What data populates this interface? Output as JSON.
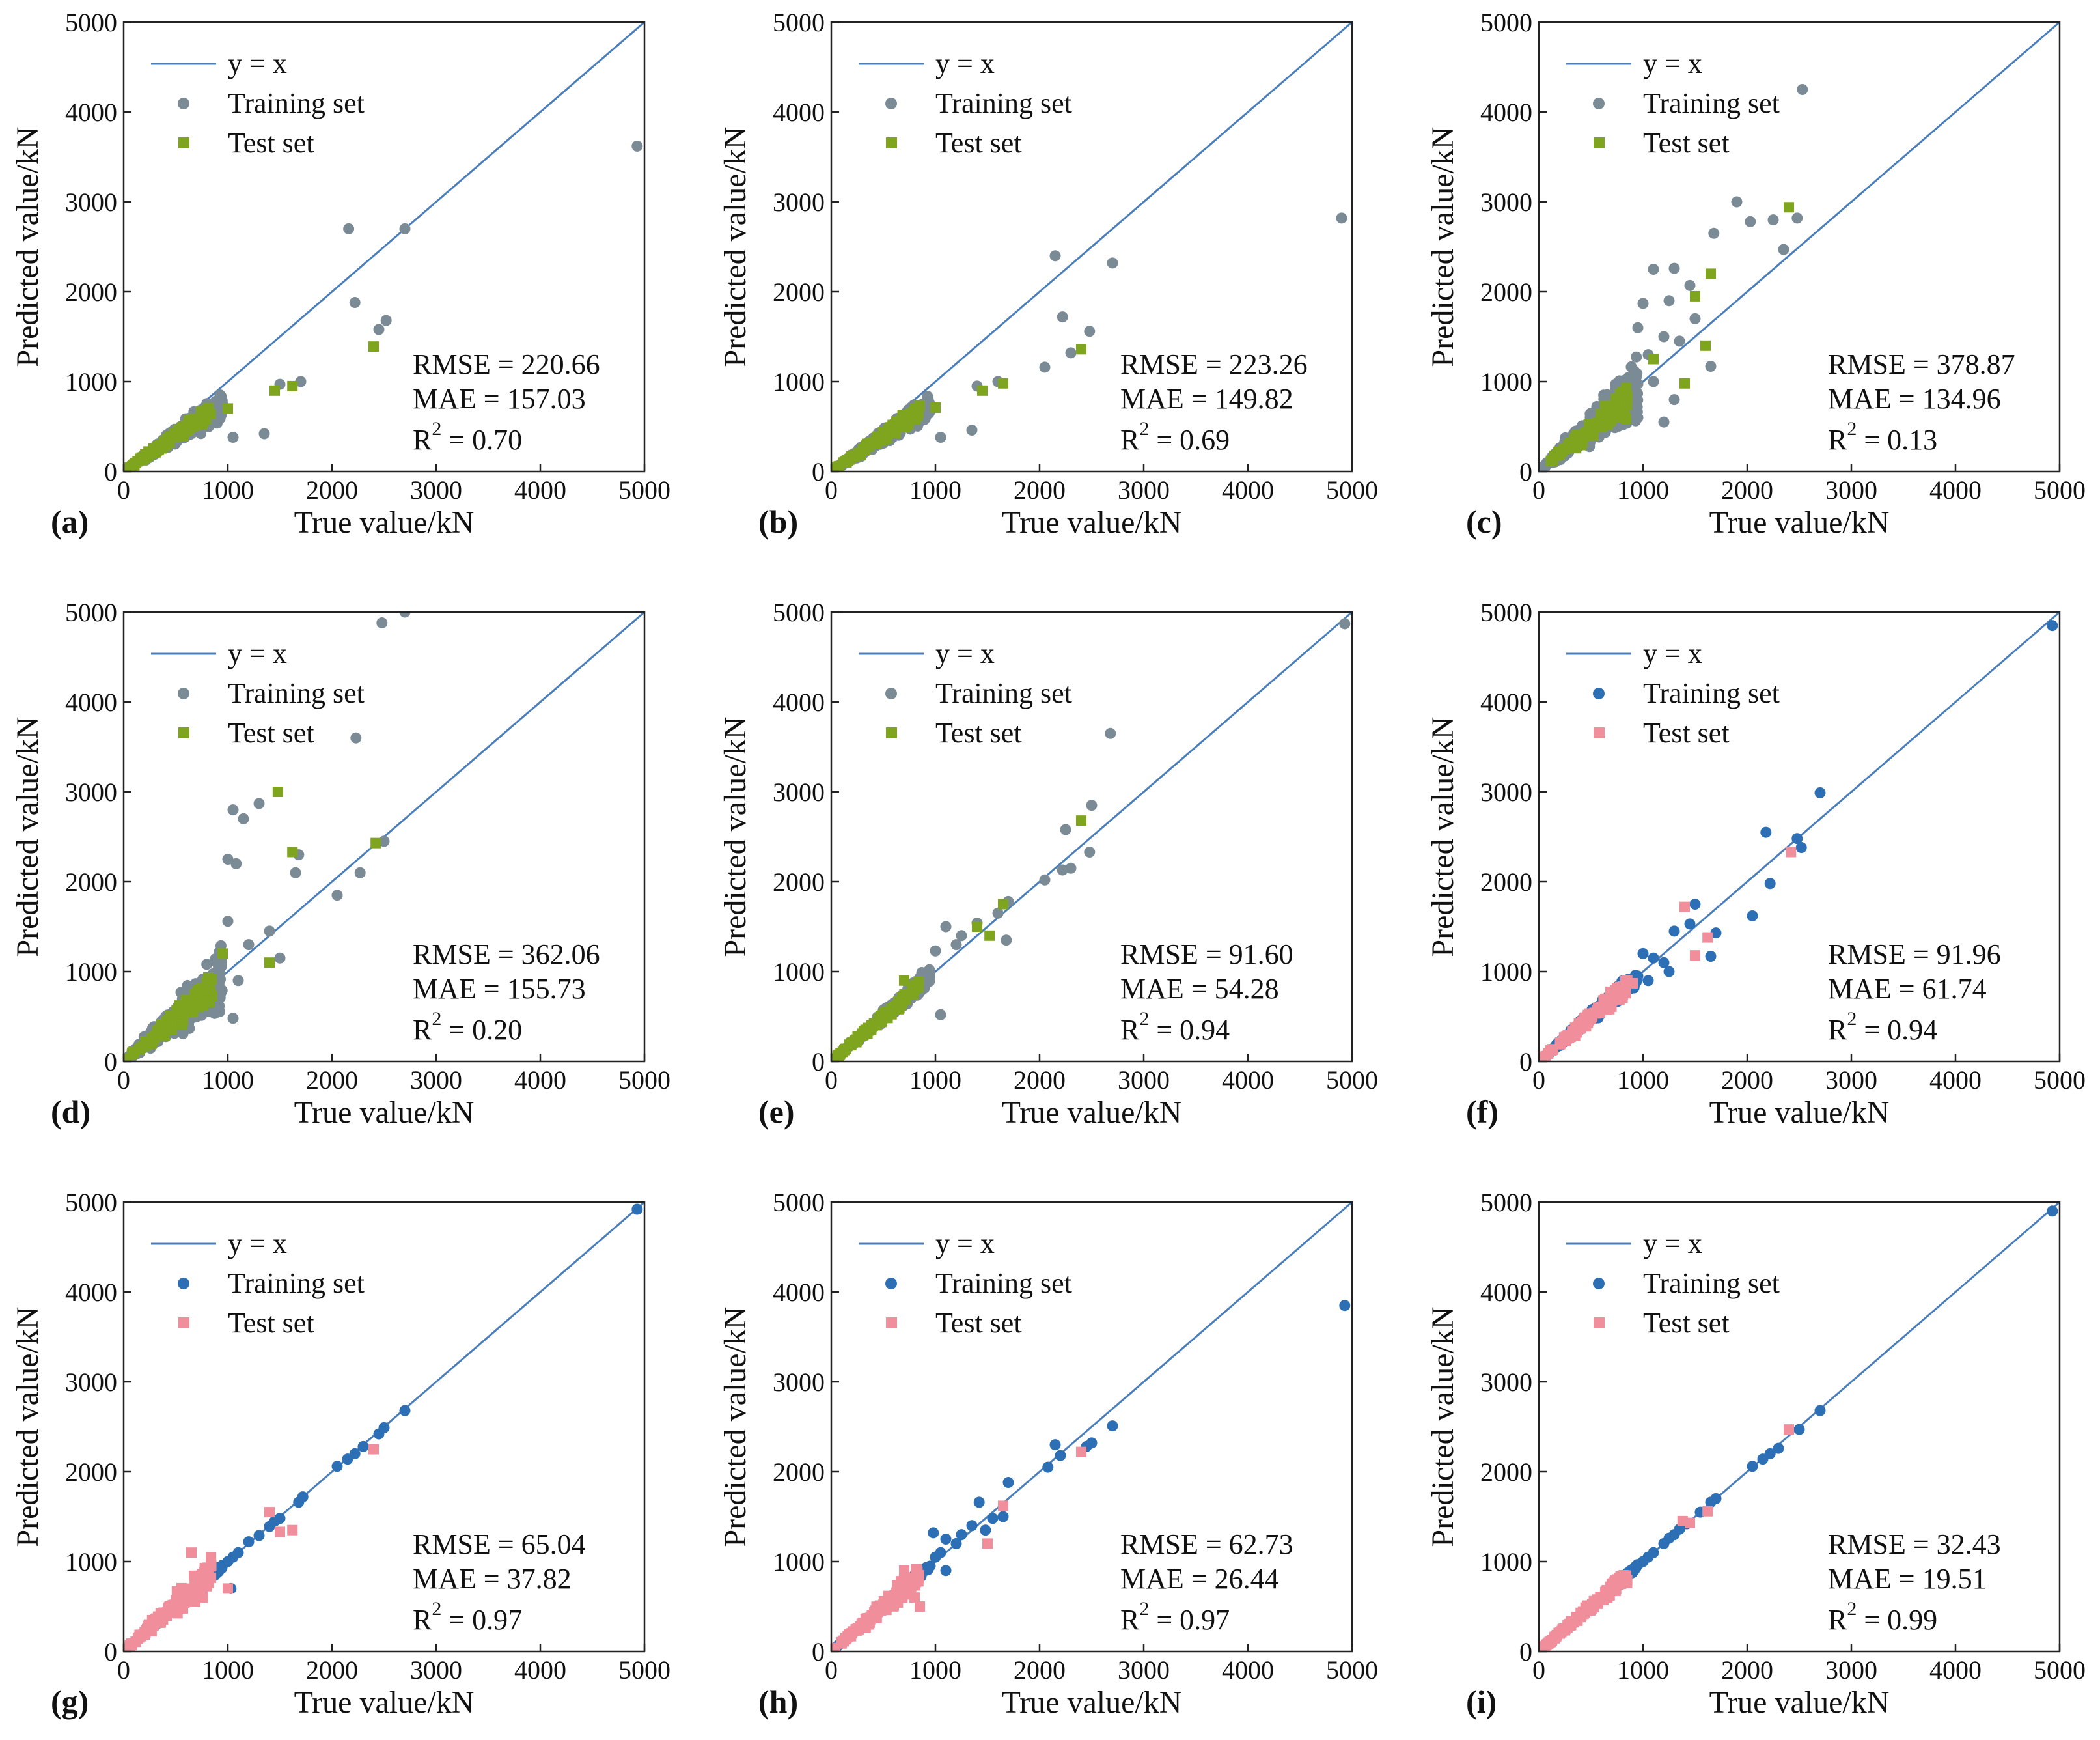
{
  "figure": {
    "colors": {
      "line": "#4A7EBB",
      "train_gray": "#7B8B96",
      "test_green": "#7FA51F",
      "train_blue": "#2D6FB4",
      "test_pink": "#F08E9C",
      "axis": "#222222"
    },
    "legend": {
      "line": "y = x",
      "train": "Training set",
      "test": "Test set"
    },
    "xlabel": "True value/kN",
    "ylabel": "Predicted value/kN",
    "ticks": [
      "0",
      "1000",
      "2000",
      "3000",
      "4000",
      "5000"
    ]
  },
  "chart_data": [
    {
      "type": "scatter",
      "id": "a",
      "label": "(a)",
      "scheme": "gray-green",
      "xlim": [
        0,
        5000
      ],
      "ylim": [
        0,
        5000
      ],
      "metrics": {
        "rmse": "RMSE = 220.66",
        "mae": "MAE = 157.03",
        "r2_value": "0.70"
      },
      "train_outliers": [
        [
          4930,
          3620
        ],
        [
          2160,
          2700
        ],
        [
          2700,
          2700
        ],
        [
          2220,
          1880
        ],
        [
          2450,
          1580
        ],
        [
          2520,
          1680
        ],
        [
          1700,
          1000
        ],
        [
          1500,
          970
        ],
        [
          1350,
          420
        ],
        [
          1050,
          380
        ]
      ],
      "test_outliers": [
        [
          2400,
          1390
        ],
        [
          1620,
          950
        ],
        [
          1450,
          900
        ],
        [
          1000,
          700
        ]
      ],
      "train_cluster": {
        "xmax": 950,
        "slope": 0.78,
        "spread": 0.32,
        "n": 340,
        "seed": 11
      },
      "test_cluster": {
        "xmax": 850,
        "slope": 0.8,
        "spread": 0.22,
        "n": 110,
        "seed": 12
      }
    },
    {
      "type": "scatter",
      "id": "b",
      "label": "(b)",
      "scheme": "gray-green",
      "xlim": [
        0,
        5000
      ],
      "ylim": [
        0,
        5000
      ],
      "metrics": {
        "rmse": "RMSE = 223.26",
        "mae": "MAE = 149.82",
        "r2_value": "0.69"
      },
      "train_outliers": [
        [
          4900,
          2820
        ],
        [
          2150,
          2400
        ],
        [
          2700,
          2320
        ],
        [
          2220,
          1720
        ],
        [
          2480,
          1560
        ],
        [
          2050,
          1160
        ],
        [
          2300,
          1320
        ],
        [
          1600,
          1000
        ],
        [
          1400,
          950
        ],
        [
          1350,
          460
        ],
        [
          1050,
          380
        ]
      ],
      "test_outliers": [
        [
          2400,
          1360
        ],
        [
          1650,
          980
        ],
        [
          1450,
          900
        ],
        [
          1000,
          710
        ]
      ],
      "train_cluster": {
        "xmax": 950,
        "slope": 0.78,
        "spread": 0.32,
        "n": 340,
        "seed": 21
      },
      "test_cluster": {
        "xmax": 850,
        "slope": 0.8,
        "spread": 0.22,
        "n": 110,
        "seed": 22
      }
    },
    {
      "type": "scatter",
      "id": "c",
      "label": "(c)",
      "scheme": "gray-green",
      "xlim": [
        0,
        5000
      ],
      "ylim": [
        0,
        5000
      ],
      "metrics": {
        "rmse": "RMSE = 378.87",
        "mae": "MAE = 134.96",
        "r2_value": "0.13"
      },
      "train_outliers": [
        [
          2530,
          4250
        ],
        [
          1900,
          3000
        ],
        [
          2030,
          2780
        ],
        [
          2250,
          2800
        ],
        [
          2480,
          2820
        ],
        [
          2350,
          2470
        ],
        [
          1680,
          2650
        ],
        [
          1100,
          2250
        ],
        [
          1300,
          2260
        ],
        [
          1450,
          2070
        ],
        [
          1250,
          1900
        ],
        [
          1000,
          1870
        ],
        [
          1500,
          1700
        ],
        [
          1650,
          1170
        ],
        [
          950,
          1600
        ],
        [
          1200,
          1500
        ],
        [
          1050,
          1300
        ],
        [
          1350,
          1450
        ],
        [
          1100,
          1000
        ],
        [
          1300,
          800
        ],
        [
          950,
          600
        ],
        [
          1200,
          550
        ]
      ],
      "test_outliers": [
        [
          2400,
          2940
        ],
        [
          1650,
          2200
        ],
        [
          1600,
          1400
        ],
        [
          1400,
          980
        ],
        [
          1500,
          1950
        ],
        [
          1100,
          1250
        ]
      ],
      "train_cluster": {
        "xmax": 950,
        "slope": 1.0,
        "spread": 0.5,
        "n": 360,
        "seed": 31
      },
      "test_cluster": {
        "xmax": 850,
        "slope": 0.95,
        "spread": 0.3,
        "n": 110,
        "seed": 32
      }
    },
    {
      "type": "scatter",
      "id": "d",
      "label": "(d)",
      "scheme": "gray-green",
      "xlim": [
        0,
        5000
      ],
      "ylim": [
        0,
        5000
      ],
      "metrics": {
        "rmse": "RMSE = 362.06",
        "mae": "MAE = 155.73",
        "r2_value": "0.20"
      },
      "train_outliers": [
        [
          2700,
          5000
        ],
        [
          2480,
          4880
        ],
        [
          2230,
          3600
        ],
        [
          1300,
          2870
        ],
        [
          1050,
          2800
        ],
        [
          1150,
          2700
        ],
        [
          1680,
          2300
        ],
        [
          1000,
          2250
        ],
        [
          1080,
          2200
        ],
        [
          1650,
          2100
        ],
        [
          2050,
          1850
        ],
        [
          2270,
          2100
        ],
        [
          2500,
          2450
        ],
        [
          1000,
          1560
        ],
        [
          1400,
          1450
        ],
        [
          1200,
          1300
        ],
        [
          1500,
          1150
        ],
        [
          1050,
          480
        ],
        [
          1100,
          900
        ]
      ],
      "test_outliers": [
        [
          1480,
          3000
        ],
        [
          1620,
          2330
        ],
        [
          2420,
          2430
        ],
        [
          950,
          1200
        ],
        [
          1400,
          1100
        ]
      ],
      "train_cluster": {
        "xmax": 950,
        "slope": 0.95,
        "spread": 0.55,
        "n": 360,
        "seed": 41
      },
      "test_cluster": {
        "xmax": 850,
        "slope": 0.95,
        "spread": 0.35,
        "n": 110,
        "seed": 42
      }
    },
    {
      "type": "scatter",
      "id": "e",
      "label": "(e)",
      "scheme": "gray-green",
      "xlim": [
        0,
        5000
      ],
      "ylim": [
        0,
        5000
      ],
      "metrics": {
        "rmse": "RMSE = 91.60",
        "mae": "MAE = 54.28",
        "r2_value": "0.94"
      },
      "train_outliers": [
        [
          4930,
          4870
        ],
        [
          2680,
          3650
        ],
        [
          2500,
          2850
        ],
        [
          2250,
          2580
        ],
        [
          2480,
          2330
        ],
        [
          2300,
          2150
        ],
        [
          2220,
          2130
        ],
        [
          2050,
          2020
        ],
        [
          1700,
          1780
        ],
        [
          1600,
          1650
        ],
        [
          1400,
          1540
        ],
        [
          1250,
          1400
        ],
        [
          1100,
          1500
        ],
        [
          1200,
          1300
        ],
        [
          1680,
          1350
        ],
        [
          1050,
          520
        ],
        [
          1000,
          1230
        ]
      ],
      "test_outliers": [
        [
          2400,
          2680
        ],
        [
          1650,
          1750
        ],
        [
          1520,
          1400
        ],
        [
          1400,
          1500
        ],
        [
          700,
          900
        ]
      ],
      "train_cluster": {
        "xmax": 950,
        "slope": 1.0,
        "spread": 0.16,
        "n": 320,
        "seed": 51
      },
      "test_cluster": {
        "xmax": 850,
        "slope": 1.0,
        "spread": 0.14,
        "n": 100,
        "seed": 52
      }
    },
    {
      "type": "scatter",
      "id": "f",
      "label": "(f)",
      "scheme": "blue-pink",
      "xlim": [
        0,
        5000
      ],
      "ylim": [
        0,
        5000
      ],
      "metrics": {
        "rmse": "RMSE = 91.96",
        "mae": "MAE = 61.74",
        "r2_value": "0.94"
      },
      "train_outliers": [
        [
          4930,
          4850
        ],
        [
          2700,
          2990
        ],
        [
          2180,
          2550
        ],
        [
          2480,
          2480
        ],
        [
          2520,
          2380
        ],
        [
          2220,
          1980
        ],
        [
          2050,
          1620
        ],
        [
          1500,
          1750
        ],
        [
          1450,
          1530
        ],
        [
          1700,
          1430
        ],
        [
          1650,
          1170
        ],
        [
          1300,
          1450
        ],
        [
          1000,
          1200
        ],
        [
          1100,
          1150
        ],
        [
          1200,
          1100
        ],
        [
          1250,
          1000
        ],
        [
          1050,
          900
        ],
        [
          950,
          950
        ]
      ],
      "test_outliers": [
        [
          2420,
          2330
        ],
        [
          1400,
          1720
        ],
        [
          1500,
          1180
        ],
        [
          1620,
          1380
        ],
        [
          900,
          870
        ]
      ],
      "train_cluster": {
        "xmax": 950,
        "slope": 1.0,
        "spread": 0.18,
        "n": 240,
        "seed": 61
      },
      "test_cluster": {
        "xmax": 850,
        "slope": 1.0,
        "spread": 0.2,
        "n": 130,
        "seed": 62
      }
    },
    {
      "type": "scatter",
      "id": "g",
      "label": "(g)",
      "scheme": "blue-pink",
      "xlim": [
        0,
        5000
      ],
      "ylim": [
        0,
        5000
      ],
      "metrics": {
        "rmse": "RMSE = 65.04",
        "mae": "MAE = 37.82",
        "r2_value": "0.97"
      },
      "train_outliers": [
        [
          4930,
          4920
        ],
        [
          2700,
          2680
        ],
        [
          2500,
          2490
        ],
        [
          2450,
          2420
        ],
        [
          2300,
          2280
        ],
        [
          2220,
          2200
        ],
        [
          2150,
          2140
        ],
        [
          2050,
          2060
        ],
        [
          1720,
          1720
        ],
        [
          1680,
          1660
        ],
        [
          1500,
          1480
        ],
        [
          1450,
          1450
        ],
        [
          1400,
          1390
        ],
        [
          1300,
          1290
        ],
        [
          1200,
          1220
        ],
        [
          1100,
          1100
        ],
        [
          1050,
          1050
        ],
        [
          1000,
          1000
        ],
        [
          1030,
          700
        ],
        [
          950,
          960
        ],
        [
          900,
          900
        ],
        [
          850,
          830
        ]
      ],
      "test_outliers": [
        [
          2400,
          2250
        ],
        [
          1400,
          1550
        ],
        [
          1620,
          1350
        ],
        [
          1500,
          1330
        ],
        [
          650,
          1100
        ],
        [
          800,
          750
        ],
        [
          1000,
          700
        ]
      ],
      "train_cluster": {
        "xmax": 950,
        "slope": 1.0,
        "spread": 0.05,
        "n": 150,
        "seed": 71
      },
      "test_cluster": {
        "xmax": 850,
        "slope": 1.05,
        "spread": 0.28,
        "n": 140,
        "seed": 72
      }
    },
    {
      "type": "scatter",
      "id": "h",
      "label": "(h)",
      "scheme": "blue-pink",
      "xlim": [
        0,
        5000
      ],
      "ylim": [
        0,
        5000
      ],
      "metrics": {
        "rmse": "RMSE = 62.73",
        "mae": "MAE = 26.44",
        "r2_value": "0.97"
      },
      "train_outliers": [
        [
          4930,
          3850
        ],
        [
          2700,
          2510
        ],
        [
          2500,
          2320
        ],
        [
          2450,
          2280
        ],
        [
          2150,
          2300
        ],
        [
          2200,
          2180
        ],
        [
          2080,
          2050
        ],
        [
          1700,
          1880
        ],
        [
          1650,
          1500
        ],
        [
          1550,
          1480
        ],
        [
          1420,
          1660
        ],
        [
          1480,
          1350
        ],
        [
          1350,
          1400
        ],
        [
          1250,
          1300
        ],
        [
          1200,
          1200
        ],
        [
          1100,
          1250
        ],
        [
          1050,
          1100
        ],
        [
          1000,
          1050
        ],
        [
          980,
          1320
        ],
        [
          950,
          950
        ],
        [
          900,
          900
        ],
        [
          850,
          870
        ],
        [
          800,
          850
        ],
        [
          1100,
          900
        ]
      ],
      "test_outliers": [
        [
          2400,
          2220
        ],
        [
          1650,
          1620
        ],
        [
          1500,
          1200
        ],
        [
          700,
          900
        ],
        [
          800,
          600
        ],
        [
          850,
          500
        ]
      ],
      "train_cluster": {
        "xmax": 950,
        "slope": 1.0,
        "spread": 0.06,
        "n": 150,
        "seed": 81
      },
      "test_cluster": {
        "xmax": 850,
        "slope": 1.0,
        "spread": 0.22,
        "n": 140,
        "seed": 82
      }
    },
    {
      "type": "scatter",
      "id": "i",
      "label": "(i)",
      "scheme": "blue-pink",
      "xlim": [
        0,
        5000
      ],
      "ylim": [
        0,
        5000
      ],
      "metrics": {
        "rmse": "RMSE = 32.43",
        "mae": "MAE = 19.51",
        "r2_value": "0.99"
      },
      "train_outliers": [
        [
          4930,
          4900
        ],
        [
          2700,
          2680
        ],
        [
          2500,
          2470
        ],
        [
          2300,
          2260
        ],
        [
          2220,
          2200
        ],
        [
          2150,
          2140
        ],
        [
          2050,
          2060
        ],
        [
          1700,
          1700
        ],
        [
          1650,
          1660
        ],
        [
          1550,
          1550
        ],
        [
          1420,
          1420
        ],
        [
          1350,
          1360
        ],
        [
          1300,
          1300
        ],
        [
          1250,
          1260
        ],
        [
          1200,
          1200
        ],
        [
          1100,
          1100
        ],
        [
          1050,
          1050
        ],
        [
          1000,
          1000
        ],
        [
          950,
          960
        ],
        [
          900,
          900
        ]
      ],
      "test_outliers": [
        [
          2400,
          2470
        ],
        [
          1620,
          1560
        ],
        [
          1450,
          1430
        ],
        [
          1380,
          1450
        ],
        [
          800,
          800
        ],
        [
          700,
          750
        ]
      ],
      "train_cluster": {
        "xmax": 950,
        "slope": 1.0,
        "spread": 0.04,
        "n": 150,
        "seed": 91
      },
      "test_cluster": {
        "xmax": 850,
        "slope": 1.0,
        "spread": 0.13,
        "n": 140,
        "seed": 92
      }
    }
  ]
}
